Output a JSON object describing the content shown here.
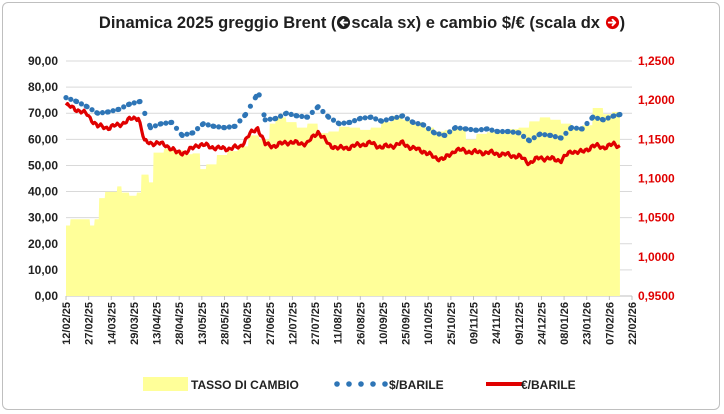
{
  "chart_data": {
    "type": "area",
    "title": "Dinamica 2025 greggio Brent (⮌scala sx) e cambio $/€ (scala dx ⮎)",
    "title_parts": {
      "before": "Dinamica 2025 greggio Brent (",
      "left_marker_icon": "circled-left-arrow-icon",
      "middle": "scala sx) e cambio $/€ (scala dx ",
      "right_marker_icon": "circled-right-arrow-icon",
      "after": ")"
    },
    "left_axis": {
      "min": 0,
      "max": 90,
      "ticks": [
        "0,00",
        "10,00",
        "20,00",
        "30,00",
        "40,00",
        "50,00",
        "60,00",
        "70,00",
        "80,00",
        "90,00"
      ],
      "color": "#222222"
    },
    "right_axis": {
      "min": 0.95,
      "max": 1.25,
      "ticks": [
        "0,9500",
        "1,0000",
        "1,0500",
        "1,1000",
        "1,1500",
        "1,2000",
        "1,2500"
      ],
      "color": "#e00000"
    },
    "x_axis": {
      "start": "2025-02-12",
      "end": "2026-02-22",
      "tick_labels": [
        "12/02/25",
        "27/02/25",
        "14/03/25",
        "29/03/25",
        "13/04/25",
        "28/04/25",
        "13/05/25",
        "28/05/25",
        "12/06/25",
        "27/06/25",
        "12/07/25",
        "27/07/25",
        "11/08/25",
        "26/08/25",
        "10/09/25",
        "25/09/25",
        "10/10/25",
        "25/10/25",
        "09/11/25",
        "24/11/25",
        "09/12/25",
        "24/12/25",
        "08/01/26",
        "23/01/26",
        "07/02/26",
        "22/02/26"
      ]
    },
    "gridlines": true,
    "legend_position": "bottom",
    "series": [
      {
        "name": "TASSO DI CAMBIO",
        "kind": "area",
        "axis": "right",
        "color": "#ffff99",
        "points": [
          [
            "2025-02-12",
            1.04
          ],
          [
            "2025-02-15",
            1.048
          ],
          [
            "2025-02-20",
            1.048
          ],
          [
            "2025-02-28",
            1.04
          ],
          [
            "2025-03-03",
            1.048
          ],
          [
            "2025-03-06",
            1.075
          ],
          [
            "2025-03-10",
            1.083
          ],
          [
            "2025-03-18",
            1.09
          ],
          [
            "2025-03-21",
            1.082
          ],
          [
            "2025-03-26",
            1.078
          ],
          [
            "2025-03-31",
            1.082
          ],
          [
            "2025-04-03",
            1.105
          ],
          [
            "2025-04-08",
            1.095
          ],
          [
            "2025-04-11",
            1.133
          ],
          [
            "2025-04-18",
            1.138
          ],
          [
            "2025-04-25",
            1.136
          ],
          [
            "2025-05-01",
            1.131
          ],
          [
            "2025-05-07",
            1.132
          ],
          [
            "2025-05-12",
            1.112
          ],
          [
            "2025-05-16",
            1.118
          ],
          [
            "2025-05-23",
            1.13
          ],
          [
            "2025-05-30",
            1.135
          ],
          [
            "2025-06-06",
            1.141
          ],
          [
            "2025-06-13",
            1.155
          ],
          [
            "2025-06-20",
            1.15
          ],
          [
            "2025-06-27",
            1.17
          ],
          [
            "2025-07-01",
            1.178
          ],
          [
            "2025-07-08",
            1.172
          ],
          [
            "2025-07-15",
            1.165
          ],
          [
            "2025-07-22",
            1.17
          ],
          [
            "2025-07-29",
            1.158
          ],
          [
            "2025-08-05",
            1.16
          ],
          [
            "2025-08-12",
            1.166
          ],
          [
            "2025-08-19",
            1.165
          ],
          [
            "2025-08-26",
            1.162
          ],
          [
            "2025-09-02",
            1.165
          ],
          [
            "2025-09-09",
            1.172
          ],
          [
            "2025-09-16",
            1.18
          ],
          [
            "2025-09-23",
            1.175
          ],
          [
            "2025-09-30",
            1.172
          ],
          [
            "2025-10-07",
            1.165
          ],
          [
            "2025-10-14",
            1.16
          ],
          [
            "2025-10-21",
            1.162
          ],
          [
            "2025-10-28",
            1.165
          ],
          [
            "2025-11-04",
            1.15
          ],
          [
            "2025-11-11",
            1.157
          ],
          [
            "2025-11-18",
            1.159
          ],
          [
            "2025-11-25",
            1.158
          ],
          [
            "2025-12-02",
            1.163
          ],
          [
            "2025-12-09",
            1.165
          ],
          [
            "2025-12-16",
            1.173
          ],
          [
            "2025-12-23",
            1.178
          ],
          [
            "2025-12-30",
            1.175
          ],
          [
            "2026-01-06",
            1.17
          ],
          [
            "2026-01-13",
            1.163
          ],
          [
            "2026-01-20",
            1.168
          ],
          [
            "2026-01-27",
            1.19
          ],
          [
            "2026-02-03",
            1.182
          ],
          [
            "2026-02-09",
            1.185
          ],
          [
            "2026-02-14",
            1.18
          ]
        ]
      },
      {
        "name": "$/BARILE",
        "kind": "dotted-line",
        "axis": "left",
        "color": "#2e75b6",
        "points": [
          [
            "2025-02-12",
            76.0
          ],
          [
            "2025-02-19",
            74.5
          ],
          [
            "2025-02-26",
            72.5
          ],
          [
            "2025-03-05",
            70.0
          ],
          [
            "2025-03-12",
            70.5
          ],
          [
            "2025-03-19",
            71.5
          ],
          [
            "2025-03-26",
            73.5
          ],
          [
            "2025-04-02",
            74.5
          ],
          [
            "2025-04-09",
            64.5
          ],
          [
            "2025-04-16",
            66.0
          ],
          [
            "2025-04-23",
            66.5
          ],
          [
            "2025-04-30",
            61.5
          ],
          [
            "2025-05-07",
            62.5
          ],
          [
            "2025-05-14",
            66.0
          ],
          [
            "2025-05-21",
            65.0
          ],
          [
            "2025-05-28",
            64.5
          ],
          [
            "2025-06-04",
            65.0
          ],
          [
            "2025-06-11",
            69.5
          ],
          [
            "2025-06-18",
            76.5
          ],
          [
            "2025-06-20",
            77.0
          ],
          [
            "2025-06-24",
            67.5
          ],
          [
            "2025-07-01",
            68.0
          ],
          [
            "2025-07-08",
            70.0
          ],
          [
            "2025-07-15",
            69.0
          ],
          [
            "2025-07-22",
            68.5
          ],
          [
            "2025-07-29",
            72.5
          ],
          [
            "2025-08-05",
            68.5
          ],
          [
            "2025-08-12",
            66.0
          ],
          [
            "2025-08-19",
            66.5
          ],
          [
            "2025-08-26",
            68.0
          ],
          [
            "2025-09-02",
            68.5
          ],
          [
            "2025-09-09",
            67.0
          ],
          [
            "2025-09-16",
            68.0
          ],
          [
            "2025-09-23",
            69.0
          ],
          [
            "2025-09-30",
            66.5
          ],
          [
            "2025-10-07",
            65.5
          ],
          [
            "2025-10-14",
            62.5
          ],
          [
            "2025-10-21",
            61.5
          ],
          [
            "2025-10-28",
            64.5
          ],
          [
            "2025-11-04",
            64.0
          ],
          [
            "2025-11-11",
            63.5
          ],
          [
            "2025-11-18",
            64.0
          ],
          [
            "2025-11-25",
            63.0
          ],
          [
            "2025-12-02",
            63.0
          ],
          [
            "2025-12-09",
            62.5
          ],
          [
            "2025-12-16",
            59.5
          ],
          [
            "2025-12-23",
            62.0
          ],
          [
            "2025-12-30",
            61.5
          ],
          [
            "2026-01-06",
            60.5
          ],
          [
            "2026-01-13",
            64.5
          ],
          [
            "2026-01-20",
            64.0
          ],
          [
            "2026-01-27",
            68.5
          ],
          [
            "2026-02-03",
            67.5
          ],
          [
            "2026-02-10",
            69.0
          ],
          [
            "2026-02-14",
            69.5
          ]
        ]
      },
      {
        "name": "€/BARILE",
        "kind": "line",
        "axis": "left",
        "color": "#e00000",
        "points": [
          [
            "2025-02-12",
            73.0
          ],
          [
            "2025-02-19",
            71.5
          ],
          [
            "2025-02-26",
            69.5
          ],
          [
            "2025-03-05",
            65.0
          ],
          [
            "2025-03-12",
            64.5
          ],
          [
            "2025-03-19",
            65.5
          ],
          [
            "2025-03-26",
            67.5
          ],
          [
            "2025-04-01",
            68.5
          ],
          [
            "2025-04-05",
            59.0
          ],
          [
            "2025-04-12",
            58.5
          ],
          [
            "2025-04-19",
            58.0
          ],
          [
            "2025-04-26",
            55.0
          ],
          [
            "2025-05-03",
            55.0
          ],
          [
            "2025-05-10",
            58.0
          ],
          [
            "2025-05-17",
            57.5
          ],
          [
            "2025-05-24",
            56.5
          ],
          [
            "2025-05-31",
            56.5
          ],
          [
            "2025-06-07",
            57.0
          ],
          [
            "2025-06-14",
            62.0
          ],
          [
            "2025-06-19",
            64.5
          ],
          [
            "2025-06-24",
            58.0
          ],
          [
            "2025-07-01",
            57.5
          ],
          [
            "2025-07-08",
            59.0
          ],
          [
            "2025-07-15",
            58.5
          ],
          [
            "2025-07-22",
            58.5
          ],
          [
            "2025-07-29",
            63.0
          ],
          [
            "2025-08-05",
            58.0
          ],
          [
            "2025-08-12",
            56.5
          ],
          [
            "2025-08-19",
            57.0
          ],
          [
            "2025-08-26",
            58.0
          ],
          [
            "2025-09-02",
            58.5
          ],
          [
            "2025-09-09",
            57.0
          ],
          [
            "2025-09-16",
            57.5
          ],
          [
            "2025-09-23",
            58.5
          ],
          [
            "2025-09-30",
            56.5
          ],
          [
            "2025-10-07",
            55.5
          ],
          [
            "2025-10-14",
            53.0
          ],
          [
            "2025-10-21",
            52.5
          ],
          [
            "2025-10-28",
            56.0
          ],
          [
            "2025-11-04",
            55.5
          ],
          [
            "2025-11-11",
            55.0
          ],
          [
            "2025-11-18",
            55.0
          ],
          [
            "2025-11-25",
            54.5
          ],
          [
            "2025-12-02",
            54.0
          ],
          [
            "2025-12-09",
            53.5
          ],
          [
            "2025-12-16",
            51.0
          ],
          [
            "2025-12-23",
            53.0
          ],
          [
            "2025-12-30",
            52.5
          ],
          [
            "2026-01-06",
            52.0
          ],
          [
            "2026-01-13",
            55.5
          ],
          [
            "2026-01-20",
            55.0
          ],
          [
            "2026-01-27",
            57.5
          ],
          [
            "2026-02-03",
            57.0
          ],
          [
            "2026-02-10",
            58.0
          ],
          [
            "2026-02-14",
            57.5
          ]
        ]
      }
    ]
  }
}
